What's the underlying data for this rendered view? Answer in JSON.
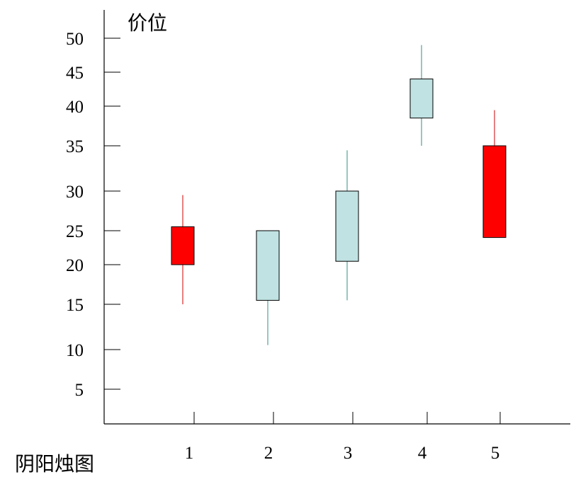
{
  "chart_data": {
    "type": "candlestick",
    "ylabel": "价位",
    "caption": "阴阳烛图",
    "y_ticks": [
      5,
      10,
      15,
      20,
      25,
      30,
      35,
      40,
      45,
      50
    ],
    "categories": [
      "1",
      "2",
      "3",
      "4",
      "5"
    ],
    "candles": [
      {
        "x": "1",
        "open": 20,
        "close": 25.5,
        "high": 29.5,
        "low": 15,
        "color": "#ff0000"
      },
      {
        "x": "2",
        "open": 25,
        "close": 15.5,
        "high": 25,
        "low": 10.5,
        "color": "#c0e2e2"
      },
      {
        "x": "3",
        "open": 20.5,
        "close": 30,
        "high": 34.5,
        "low": 15.5,
        "color": "#c0e2e2"
      },
      {
        "x": "4",
        "open": 38.5,
        "close": 44,
        "high": 49,
        "low": 35,
        "color": "#c0e2e2"
      },
      {
        "x": "5",
        "open": 35,
        "close": 24,
        "high": 39.5,
        "low": 24,
        "color": "#ff0000"
      }
    ],
    "wick_colors": {
      "red": "#cc0000",
      "teal": "#2f8f86"
    }
  }
}
